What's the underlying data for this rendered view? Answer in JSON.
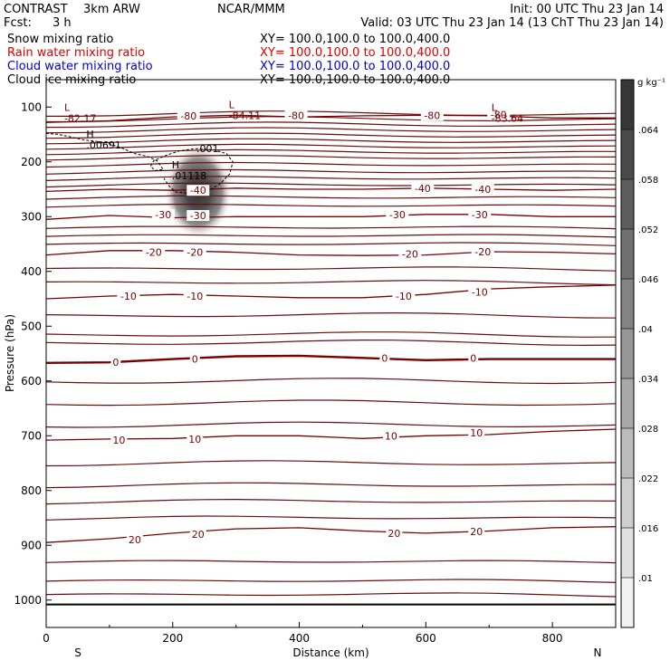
{
  "header": {
    "experiment": "CONTRAST",
    "model": "3km ARW",
    "org": "NCAR/MMM",
    "init": "Init: 00 UTC Thu 23 Jan 14",
    "fcst_label": "Fcst:",
    "fcst_value": "3 h",
    "valid": "Valid: 03 UTC Thu 23 Jan 14 (13 ChT Thu 23 Jan 14)"
  },
  "fields": [
    {
      "name": "Snow mixing ratio",
      "xy": "XY= 100.0,100.0 to 100.0,400.0",
      "color": "#000000"
    },
    {
      "name": "Rain water mixing ratio",
      "xy": "XY= 100.0,100.0 to 100.0,400.0",
      "color": "#e00000"
    },
    {
      "name": "Cloud water mixing ratio",
      "xy": "XY= 100.0,100.0 to 100.0,400.0",
      "color": "#0000d0"
    },
    {
      "name": "Cloud ice mixing ratio",
      "xy": "XY= 100.0,100.0 to 100.0,400.0",
      "color": "#000000"
    }
  ],
  "chart_data": {
    "type": "contour cross-section",
    "xlabel": "Distance (km)",
    "ylabel": "Pressure (hPa)",
    "xlim": [
      0,
      900
    ],
    "ylim": [
      1050,
      50
    ],
    "x_ticks": [
      "0",
      "200",
      "400",
      "600",
      "800"
    ],
    "x_tick_values": [
      0,
      200,
      400,
      600,
      800
    ],
    "y_ticks": [
      "100",
      "200",
      "300",
      "400",
      "500",
      "600",
      "700",
      "800",
      "900",
      "1000"
    ],
    "y_tick_values": [
      100,
      200,
      300,
      400,
      500,
      600,
      700,
      800,
      900,
      1000
    ],
    "left_end": "S",
    "right_end": "N",
    "surface_line_hpa": 1008,
    "colorbar": {
      "units": "g kg⁻¹",
      "labels": [
        ".01",
        ".016",
        ".022",
        ".028",
        ".034",
        ".04",
        ".046",
        ".052",
        ".058",
        ".064"
      ],
      "values": [
        0.01,
        0.016,
        0.022,
        0.028,
        0.034,
        0.04,
        0.046,
        0.052,
        0.058,
        0.064
      ],
      "gray_levels": [
        "#f2f2f2",
        "#e0e0e0",
        "#cecece",
        "#bcbcbc",
        "#a9a9a9",
        "#969696",
        "#838383",
        "#707070",
        "#5d5d5d",
        "#4a4a4a",
        "#373737"
      ]
    },
    "temperature_contours_degC": [
      {
        "value": 20,
        "points": [
          [
            0,
            895
          ],
          [
            100,
            888
          ],
          [
            200,
            878
          ],
          [
            300,
            870
          ],
          [
            400,
            868
          ],
          [
            500,
            874
          ],
          [
            600,
            878
          ],
          [
            700,
            874
          ],
          [
            800,
            868
          ],
          [
            900,
            866
          ]
        ]
      },
      {
        "value": 10,
        "points": [
          [
            0,
            708
          ],
          [
            100,
            706
          ],
          [
            200,
            705
          ],
          [
            300,
            700
          ],
          [
            400,
            700
          ],
          [
            500,
            705
          ],
          [
            600,
            700
          ],
          [
            700,
            698
          ],
          [
            800,
            692
          ],
          [
            900,
            688
          ]
        ]
      },
      {
        "value": 0,
        "points": [
          [
            0,
            567
          ],
          [
            100,
            566
          ],
          [
            200,
            560
          ],
          [
            300,
            555
          ],
          [
            400,
            554
          ],
          [
            500,
            558
          ],
          [
            600,
            562
          ],
          [
            700,
            560
          ],
          [
            800,
            560
          ],
          [
            900,
            560
          ]
        ]
      },
      {
        "value": -10,
        "points": [
          [
            0,
            450
          ],
          [
            100,
            445
          ],
          [
            200,
            442
          ],
          [
            300,
            445
          ],
          [
            400,
            448
          ],
          [
            500,
            448
          ],
          [
            600,
            442
          ],
          [
            700,
            432
          ],
          [
            800,
            428
          ],
          [
            900,
            425
          ]
        ]
      },
      {
        "value": -20,
        "points": [
          [
            0,
            370
          ],
          [
            100,
            362
          ],
          [
            200,
            362
          ],
          [
            300,
            365
          ],
          [
            400,
            370
          ],
          [
            500,
            371
          ],
          [
            600,
            370
          ],
          [
            700,
            364
          ],
          [
            800,
            365
          ],
          [
            900,
            368
          ]
        ]
      },
      {
        "value": -30,
        "points": [
          [
            0,
            305
          ],
          [
            100,
            298
          ],
          [
            200,
            302
          ],
          [
            300,
            300
          ],
          [
            400,
            300
          ],
          [
            500,
            300
          ],
          [
            600,
            296
          ],
          [
            700,
            296
          ],
          [
            800,
            300
          ],
          [
            900,
            300
          ]
        ]
      },
      {
        "value": -40,
        "points": [
          [
            0,
            254
          ],
          [
            100,
            250
          ],
          [
            200,
            252
          ],
          [
            300,
            248
          ],
          [
            400,
            250
          ],
          [
            500,
            250
          ],
          [
            600,
            248
          ],
          [
            700,
            250
          ],
          [
            800,
            252
          ],
          [
            900,
            250
          ]
        ]
      },
      {
        "value": -80,
        "points": [
          [
            0,
            128
          ],
          [
            100,
            125
          ],
          [
            200,
            118
          ],
          [
            300,
            115
          ],
          [
            400,
            118
          ],
          [
            500,
            116
          ],
          [
            600,
            115
          ],
          [
            700,
            116
          ],
          [
            800,
            120
          ],
          [
            900,
            120
          ]
        ]
      }
    ],
    "contour_labels": [
      {
        "text": "20",
        "x": 140,
        "p": 890
      },
      {
        "text": "20",
        "x": 240,
        "p": 880
      },
      {
        "text": "20",
        "x": 550,
        "p": 878
      },
      {
        "text": "20",
        "x": 680,
        "p": 875
      },
      {
        "text": "10",
        "x": 115,
        "p": 708
      },
      {
        "text": "10",
        "x": 235,
        "p": 706
      },
      {
        "text": "10",
        "x": 545,
        "p": 700
      },
      {
        "text": "10",
        "x": 680,
        "p": 695
      },
      {
        "text": "0",
        "x": 110,
        "p": 566
      },
      {
        "text": "0",
        "x": 235,
        "p": 560
      },
      {
        "text": "0",
        "x": 535,
        "p": 558
      },
      {
        "text": "0",
        "x": 675,
        "p": 558
      },
      {
        "text": "-10",
        "x": 130,
        "p": 445
      },
      {
        "text": "-10",
        "x": 235,
        "p": 445
      },
      {
        "text": "-10",
        "x": 565,
        "p": 445
      },
      {
        "text": "-10",
        "x": 685,
        "p": 438
      },
      {
        "text": "-20",
        "x": 170,
        "p": 365
      },
      {
        "text": "-20",
        "x": 235,
        "p": 365
      },
      {
        "text": "-20",
        "x": 575,
        "p": 368
      },
      {
        "text": "-20",
        "x": 690,
        "p": 364
      },
      {
        "text": "-30",
        "x": 185,
        "p": 296
      },
      {
        "text": "-30",
        "x": 240,
        "p": 298
      },
      {
        "text": "-30",
        "x": 555,
        "p": 296
      },
      {
        "text": "-30",
        "x": 685,
        "p": 296
      },
      {
        "text": "-40",
        "x": 240,
        "p": 252
      },
      {
        "text": "-40",
        "x": 595,
        "p": 248
      },
      {
        "text": "-40",
        "x": 690,
        "p": 250
      },
      {
        "text": "-80",
        "x": 225,
        "p": 116
      },
      {
        "text": "-80",
        "x": 395,
        "p": 115
      },
      {
        "text": "-80",
        "x": 610,
        "p": 115
      },
      {
        "text": "-80",
        "x": 715,
        "p": 114
      }
    ],
    "lows_highs": [
      {
        "mark": "L",
        "value": "-82.17",
        "x": 40,
        "p": 117
      },
      {
        "mark": "L",
        "value": "-84.11",
        "x": 300,
        "p": 112
      },
      {
        "mark": "L",
        "value": "-83.64",
        "x": 715,
        "p": 117
      },
      {
        "mark": "H",
        "value": ".00691",
        "x": 75,
        "p": 166
      },
      {
        "mark": "H",
        "value": ".01118",
        "x": 210,
        "p": 222
      }
    ],
    "cloud_ice_contour_label": ".001",
    "cloud_ice_contour_label_pos": {
      "x": 255,
      "p": 176
    },
    "snow_max_position": {
      "x": 240,
      "p": 255
    }
  }
}
